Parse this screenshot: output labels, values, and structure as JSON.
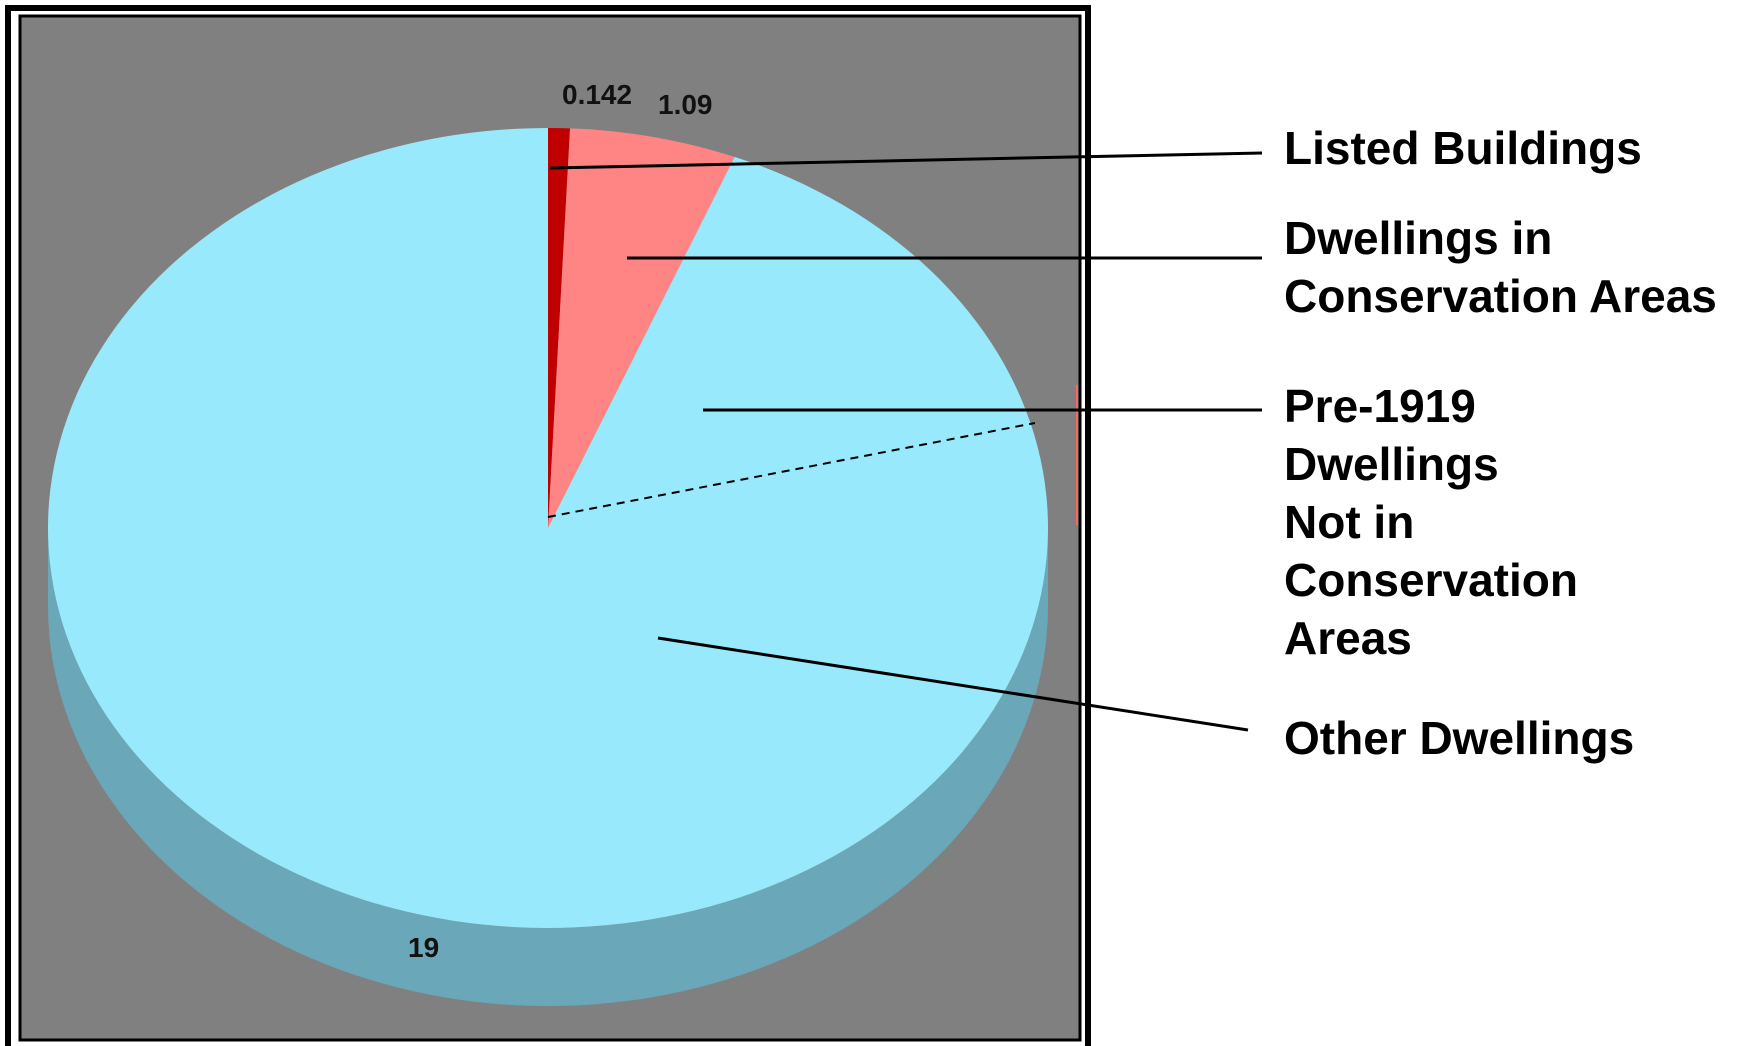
{
  "chart_data": {
    "type": "pie",
    "style": "3d-pie",
    "slices": [
      {
        "name": "Listed Buildings",
        "legend_lines": [
          "Listed Buildings"
        ],
        "value": 0.142,
        "label": "0.142",
        "color": "#c00000"
      },
      {
        "name": "Dwellings in Conservation Areas",
        "legend_lines": [
          "Dwellings in",
          "Conservation Areas"
        ],
        "value": 1.09,
        "label": "1.09",
        "color": "#ff8585"
      },
      {
        "name": "Pre-1919 Dwellings Not in Conservation Areas",
        "legend_lines": [
          "Pre-1919",
          "Dwellings",
          "Not in",
          "Conservation",
          "Areas"
        ],
        "value": 0,
        "label": "",
        "color": "#97e9fb"
      },
      {
        "name": "Other Dwellings",
        "legend_lines": [
          "Other Dwellings"
        ],
        "value": 19,
        "label": "19",
        "color": "#97e9fb"
      }
    ],
    "colors": {
      "plot_background": "#808080",
      "side_shade": "#6aa7b8",
      "frame": "#000000"
    },
    "legend_position": "right"
  }
}
